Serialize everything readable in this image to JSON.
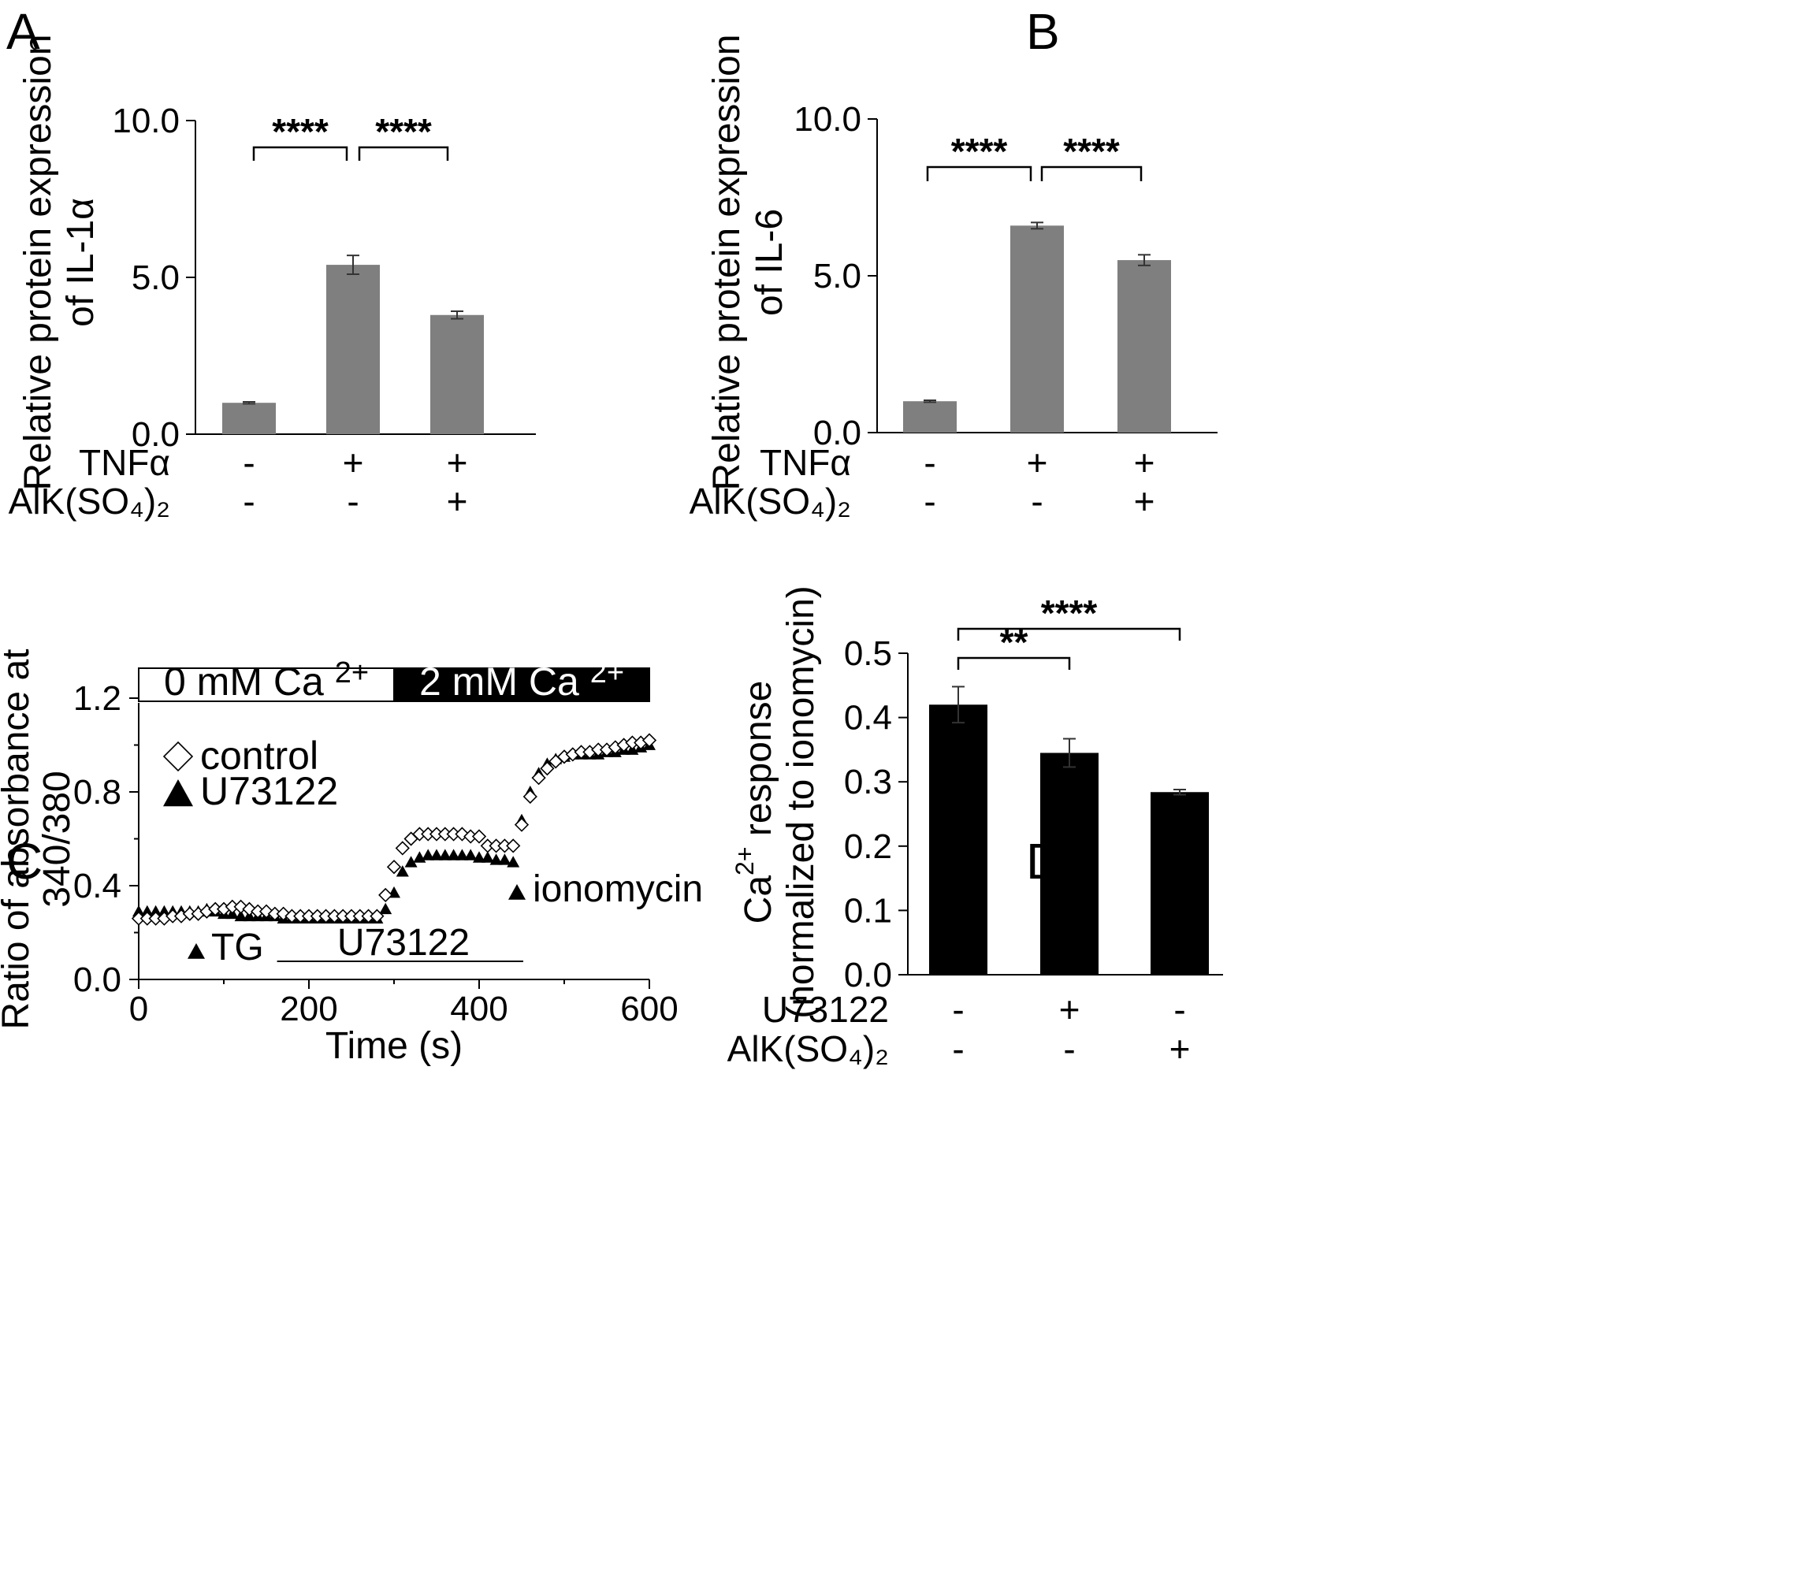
{
  "figure": {
    "panels": [
      "A",
      "B",
      "C",
      "D"
    ]
  },
  "chart_data": [
    {
      "panel": "A",
      "type": "bar",
      "ylabel": [
        "Relative protein expression",
        "of IL-1α"
      ],
      "ylim": [
        0,
        10
      ],
      "yticks": [
        "0.0",
        "5.0",
        "10.0"
      ],
      "ytick_values": [
        0,
        5,
        10
      ],
      "bar_color": "#7f7f7f",
      "conditions": [
        {
          "label": "TNFα",
          "values": [
            "-",
            "+",
            "+"
          ]
        },
        {
          "label": "AlK(SO₄)₂",
          "values": [
            "-",
            "-",
            "+"
          ]
        }
      ],
      "values": [
        1.0,
        5.4,
        3.8
      ],
      "errors": [
        0.03,
        0.3,
        0.12
      ],
      "significance": [
        {
          "from": 0,
          "to": 1,
          "label": "****"
        },
        {
          "from": 1,
          "to": 2,
          "label": "****"
        }
      ]
    },
    {
      "panel": "B",
      "type": "bar",
      "ylabel": [
        "Relative protein expression",
        "of IL-6"
      ],
      "ylim": [
        0,
        10
      ],
      "yticks": [
        "0.0",
        "5.0",
        "10.0"
      ],
      "ytick_values": [
        0,
        5,
        10
      ],
      "bar_color": "#7f7f7f",
      "conditions": [
        {
          "label": "TNFα",
          "values": [
            "-",
            "+",
            "+"
          ]
        },
        {
          "label": "AlK(SO₄)₂",
          "values": [
            "-",
            "-",
            "+"
          ]
        }
      ],
      "values": [
        1.0,
        6.6,
        5.5
      ],
      "errors": [
        0.03,
        0.1,
        0.17
      ],
      "significance": [
        {
          "from": 0,
          "to": 1,
          "label": "****"
        },
        {
          "from": 1,
          "to": 2,
          "label": "****"
        }
      ]
    },
    {
      "panel": "C",
      "type": "scatter",
      "xlabel": "Time (s)",
      "ylabel": [
        "Ratio of absorbance at",
        "340/380"
      ],
      "xlim": [
        0,
        600
      ],
      "ylim": [
        0,
        1.3
      ],
      "xticks": [
        "0",
        "200",
        "400",
        "600"
      ],
      "xtick_values": [
        0,
        200,
        400,
        600
      ],
      "yticks": [
        "0.0",
        "0.4",
        "0.8",
        "1.2"
      ],
      "ytick_values": [
        0,
        0.4,
        0.8,
        1.2
      ],
      "bath_bar": [
        {
          "label": "0 mM Ca",
          "sup": "2+",
          "from": 0,
          "to": 300,
          "fill": "#ffffff",
          "text_color": "#000000"
        },
        {
          "label": "2 mM Ca",
          "sup": "2+",
          "from": 300,
          "to": 600,
          "fill": "#000000",
          "text_color": "#ffffff"
        }
      ],
      "legend": [
        {
          "marker": "open-diamond",
          "label": "control"
        },
        {
          "marker": "filled-triangle",
          "label": "U73122"
        }
      ],
      "legend_position": "upper-left",
      "annotations": [
        {
          "marker": "filled-triangle",
          "label": "TG",
          "x": 65,
          "y": 0.12
        },
        {
          "marker": "filled-triangle",
          "label": "ionomycin",
          "x": 442,
          "y": 0.36
        },
        {
          "line": "U73122",
          "from": 170,
          "to": 450,
          "y": 0.07
        }
      ],
      "series": [
        {
          "name": "control",
          "marker": "open-diamond",
          "x": [
            0,
            10,
            20,
            30,
            40,
            50,
            60,
            70,
            80,
            90,
            100,
            110,
            120,
            130,
            140,
            150,
            160,
            170,
            180,
            190,
            200,
            210,
            220,
            230,
            240,
            250,
            260,
            270,
            280,
            290,
            300,
            310,
            320,
            330,
            340,
            350,
            360,
            370,
            380,
            390,
            400,
            410,
            420,
            430,
            440,
            450,
            460,
            470,
            480,
            490,
            500,
            510,
            520,
            530,
            540,
            550,
            560,
            570,
            580,
            590,
            600
          ],
          "y": [
            0.26,
            0.26,
            0.26,
            0.26,
            0.27,
            0.27,
            0.28,
            0.28,
            0.29,
            0.3,
            0.3,
            0.31,
            0.31,
            0.3,
            0.29,
            0.29,
            0.28,
            0.28,
            0.27,
            0.27,
            0.27,
            0.27,
            0.27,
            0.27,
            0.27,
            0.27,
            0.27,
            0.27,
            0.27,
            0.36,
            0.48,
            0.56,
            0.6,
            0.62,
            0.62,
            0.62,
            0.62,
            0.62,
            0.62,
            0.61,
            0.61,
            0.57,
            0.57,
            0.57,
            0.57,
            0.66,
            0.78,
            0.86,
            0.9,
            0.93,
            0.95,
            0.96,
            0.97,
            0.97,
            0.98,
            0.98,
            0.99,
            1.0,
            1.01,
            1.01,
            1.02
          ]
        },
        {
          "name": "U73122",
          "marker": "filled-triangle",
          "x": [
            0,
            10,
            20,
            30,
            40,
            50,
            60,
            70,
            80,
            90,
            100,
            110,
            120,
            130,
            140,
            150,
            160,
            170,
            180,
            190,
            200,
            210,
            220,
            230,
            240,
            250,
            260,
            270,
            280,
            290,
            300,
            310,
            320,
            330,
            340,
            350,
            360,
            370,
            380,
            390,
            400,
            410,
            420,
            430,
            440,
            450,
            460,
            470,
            480,
            490,
            500,
            510,
            520,
            530,
            540,
            550,
            560,
            570,
            580,
            590,
            600
          ],
          "y": [
            0.29,
            0.29,
            0.29,
            0.29,
            0.29,
            0.29,
            0.29,
            0.29,
            0.3,
            0.29,
            0.28,
            0.28,
            0.27,
            0.27,
            0.27,
            0.27,
            0.27,
            0.26,
            0.26,
            0.26,
            0.26,
            0.26,
            0.26,
            0.26,
            0.26,
            0.26,
            0.26,
            0.26,
            0.26,
            0.3,
            0.37,
            0.46,
            0.5,
            0.52,
            0.53,
            0.53,
            0.53,
            0.53,
            0.53,
            0.53,
            0.52,
            0.52,
            0.51,
            0.51,
            0.5,
            0.68,
            0.8,
            0.88,
            0.92,
            0.94,
            0.95,
            0.96,
            0.96,
            0.96,
            0.96,
            0.97,
            0.97,
            0.98,
            0.98,
            0.99,
            1.0
          ]
        }
      ]
    },
    {
      "panel": "D",
      "type": "bar",
      "ylabel": [
        "Ca²⁺ response",
        "(normalized to ionomycin)"
      ],
      "ylabel_main": "Ca",
      "ylabel_sup": "2+",
      "ylabel_rest": "response",
      "ylabel_second": "(normalized to ionomycin)",
      "ylim": [
        0,
        0.5
      ],
      "yticks": [
        "0.0",
        "0.1",
        "0.2",
        "0.3",
        "0.4",
        "0.5"
      ],
      "ytick_values": [
        0,
        0.1,
        0.2,
        0.3,
        0.4,
        0.5
      ],
      "bar_color": "#000000",
      "conditions": [
        {
          "label": "U73122",
          "values": [
            "-",
            "+",
            "-"
          ]
        },
        {
          "label": "AlK(SO₄)₂",
          "values": [
            "-",
            "-",
            "+"
          ]
        }
      ],
      "values": [
        0.42,
        0.345,
        0.284
      ],
      "errors": [
        0.028,
        0.022,
        0.004
      ],
      "significance": [
        {
          "from": 0,
          "to": 1,
          "label": "**"
        },
        {
          "from": 0,
          "to": 2,
          "label": "****"
        }
      ]
    }
  ]
}
